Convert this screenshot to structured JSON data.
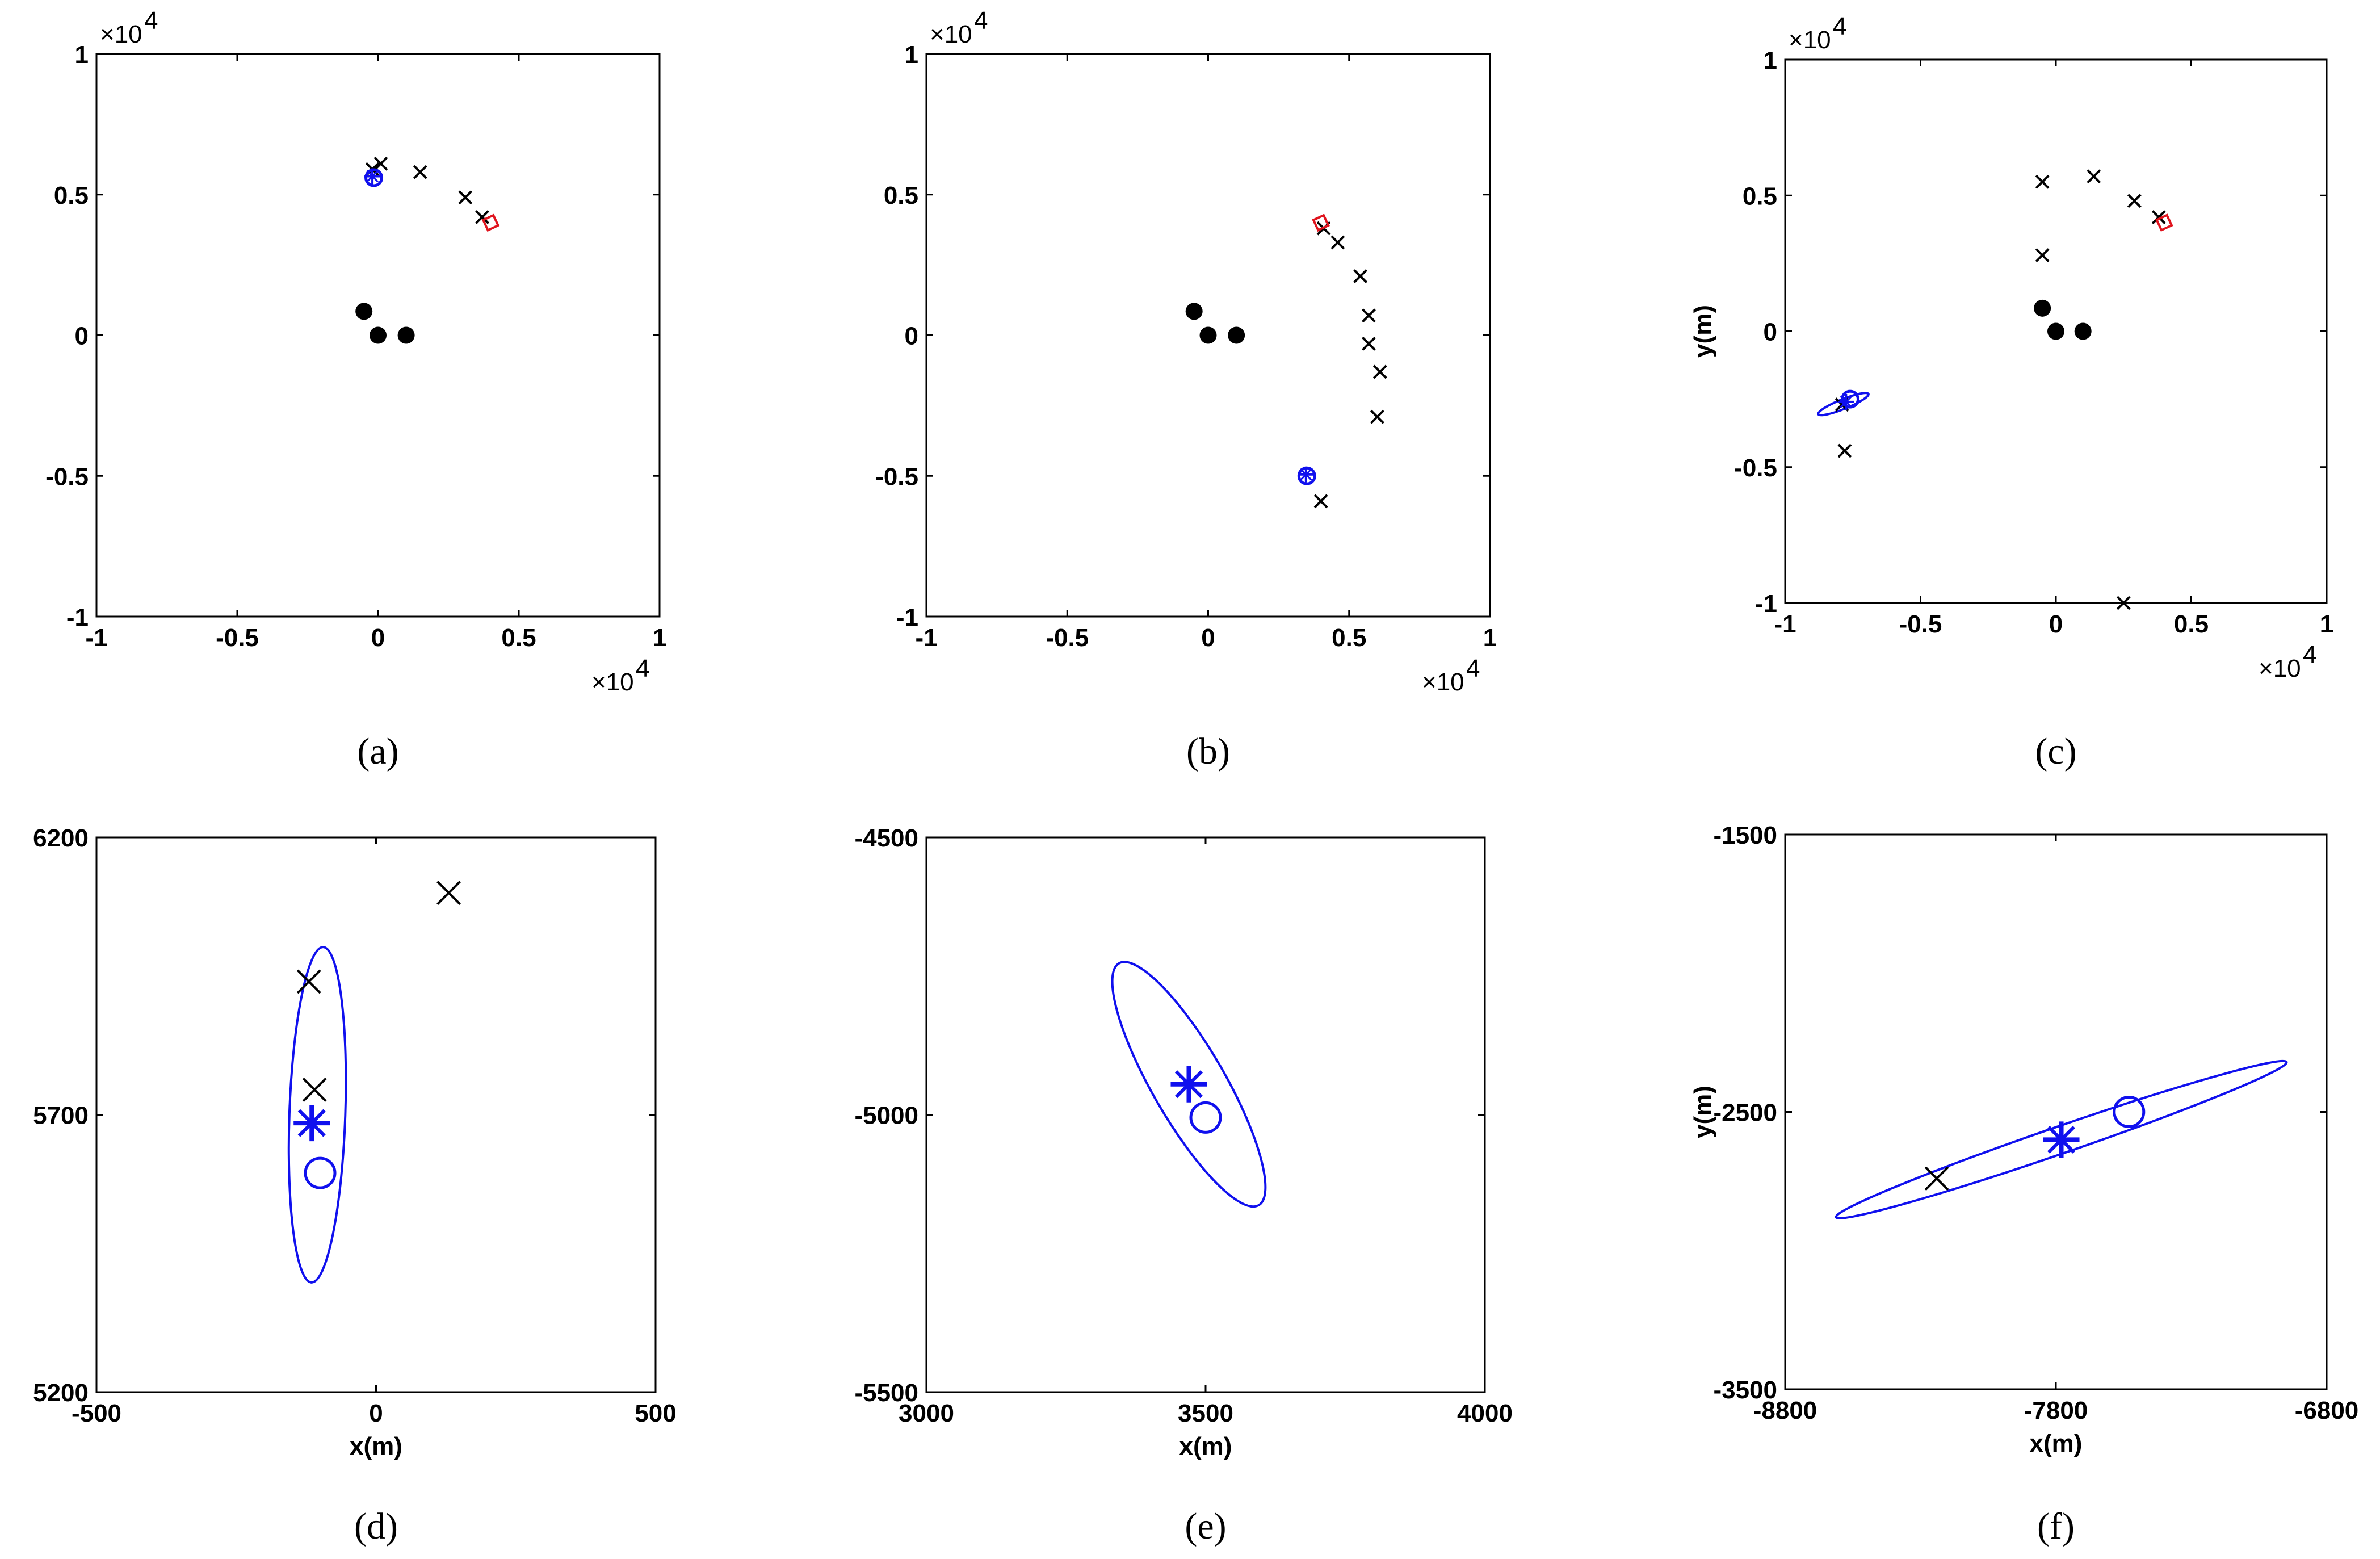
{
  "colors": {
    "black": "#000000",
    "blue": "#1010ee",
    "red": "#e0141e"
  },
  "charts": [
    {
      "id": "a",
      "type": "scatter",
      "caption": "(a)",
      "xlim": [
        -10000,
        10000
      ],
      "ylim": [
        -10000,
        10000
      ],
      "xticks": [
        "-1",
        "-0.5",
        "0",
        "0.5",
        "1"
      ],
      "yticks": [
        "-1",
        "-0.5",
        "0",
        "0.5",
        "1"
      ],
      "x_exponent": "×10",
      "y_exponent": "×10",
      "exponent_power": "4",
      "xlabel": "",
      "ylabel": "",
      "sensors": [
        [
          -500,
          850
        ],
        [
          0,
          0
        ],
        [
          1000,
          0
        ]
      ],
      "track": [
        [
          3700,
          4200
        ],
        [
          3100,
          4900
        ],
        [
          1500,
          5800
        ],
        [
          100,
          6100
        ],
        [
          -200,
          5900
        ]
      ],
      "red_diamond": [
        [
          4000,
          4000
        ]
      ],
      "blue_circle": [
        [
          -150,
          5600
        ]
      ],
      "blue_star": [
        [
          -200,
          5650
        ]
      ],
      "ellipse": null
    },
    {
      "id": "b",
      "type": "scatter",
      "caption": "(b)",
      "xlim": [
        -10000,
        10000
      ],
      "ylim": [
        -10000,
        10000
      ],
      "xticks": [
        "-1",
        "-0.5",
        "0",
        "0.5",
        "1"
      ],
      "yticks": [
        "-1",
        "-0.5",
        "0",
        "0.5",
        "1"
      ],
      "x_exponent": "×10",
      "y_exponent": "×10",
      "exponent_power": "4",
      "xlabel": "",
      "ylabel": "",
      "sensors": [
        [
          -500,
          850
        ],
        [
          0,
          0
        ],
        [
          1000,
          0
        ]
      ],
      "track": [
        [
          4100,
          3800
        ],
        [
          4600,
          3300
        ],
        [
          5400,
          2100
        ],
        [
          5700,
          700
        ],
        [
          5700,
          -300
        ],
        [
          6100,
          -1300
        ],
        [
          6000,
          -2900
        ],
        [
          4000,
          -5900
        ]
      ],
      "red_diamond": [
        [
          4000,
          4000
        ]
      ],
      "blue_circle": [
        [
          3500,
          -5000
        ]
      ],
      "blue_star": [
        [
          3470,
          -4950
        ]
      ],
      "ellipse": null
    },
    {
      "id": "c",
      "type": "scatter",
      "caption": "(c)",
      "xlim": [
        -10000,
        10000
      ],
      "ylim": [
        -10000,
        10000
      ],
      "xticks": [
        "-1",
        "-0.5",
        "0",
        "0.5",
        "1"
      ],
      "yticks": [
        "-1",
        "-0.5",
        "0",
        "0.5",
        "1"
      ],
      "x_exponent": "×10",
      "y_exponent": "×10",
      "exponent_power": "4",
      "xlabel": "",
      "ylabel": "y(m)",
      "sensors": [
        [
          -500,
          850
        ],
        [
          0,
          0
        ],
        [
          1000,
          0
        ]
      ],
      "track": [
        [
          3800,
          4200
        ],
        [
          2900,
          4800
        ],
        [
          1400,
          5700
        ],
        [
          -500,
          5500
        ],
        [
          -500,
          2800
        ],
        [
          -7900,
          -2700
        ],
        [
          -7800,
          -4400
        ],
        [
          2500,
          -10000
        ]
      ],
      "red_diamond": [
        [
          4000,
          4000
        ]
      ],
      "blue_circle": [
        [
          -7600,
          -2500
        ]
      ],
      "blue_star": [
        [
          -7750,
          -2600
        ]
      ],
      "ellipse": {
        "cx": -7850,
        "cy": -2680,
        "rx": 1000,
        "ry": 180,
        "angle_deg": 22
      }
    },
    {
      "id": "d",
      "type": "scatter",
      "caption": "(d)",
      "xlim": [
        -500,
        500
      ],
      "ylim": [
        5200,
        6200
      ],
      "xticks": [
        "-500",
        "0",
        "500"
      ],
      "yticks": [
        "5200",
        "5700",
        "6200"
      ],
      "x_exponent": "",
      "y_exponent": "",
      "exponent_power": "",
      "xlabel": "x(m)",
      "ylabel": "",
      "sensors": [],
      "track": [
        [
          -120,
          5940
        ],
        [
          -110,
          5745
        ],
        [
          130,
          6100
        ]
      ],
      "red_diamond": [],
      "blue_circle": [
        [
          -100,
          5595
        ]
      ],
      "blue_star": [
        [
          -115,
          5685
        ]
      ],
      "ellipse": {
        "cx": -105,
        "cy": 5700,
        "rx": 300,
        "ry": 50,
        "angle_deg": 88
      }
    },
    {
      "id": "e",
      "type": "scatter",
      "caption": "(e)",
      "xlim": [
        3000,
        4000
      ],
      "ylim": [
        -5500,
        -4500
      ],
      "xticks": [
        "3000",
        "3500",
        "4000"
      ],
      "yticks": [
        "-5500",
        "-5000",
        "-4500"
      ],
      "x_exponent": "",
      "y_exponent": "",
      "exponent_power": "",
      "xlabel": "x(m)",
      "ylabel": "",
      "sensors": [],
      "track": [],
      "red_diamond": [],
      "blue_circle": [
        [
          3500,
          -5005
        ]
      ],
      "blue_star": [
        [
          3470,
          -4945
        ]
      ],
      "ellipse": {
        "cx": 3470,
        "cy": -4945,
        "rx": 250,
        "ry": 65,
        "angle_deg": -60
      }
    },
    {
      "id": "f",
      "type": "scatter",
      "caption": "(f)",
      "xlim": [
        -8800,
        -6800
      ],
      "ylim": [
        -3500,
        -1500
      ],
      "xticks": [
        "-8800",
        "-7800",
        "-6800"
      ],
      "yticks": [
        "-3500",
        "-2500",
        "-1500"
      ],
      "x_exponent": "",
      "y_exponent": "",
      "exponent_power": "",
      "xlabel": "x(m)",
      "ylabel": "y(m)",
      "sensors": [],
      "track": [
        [
          -8240,
          -2740
        ]
      ],
      "red_diamond": [],
      "blue_circle": [
        [
          -7530,
          -2500
        ]
      ],
      "blue_star": [
        [
          -7780,
          -2600
        ]
      ],
      "ellipse": {
        "cx": -7780,
        "cy": -2600,
        "rx": 880,
        "ry": 50,
        "angle_deg": 19
      }
    }
  ]
}
